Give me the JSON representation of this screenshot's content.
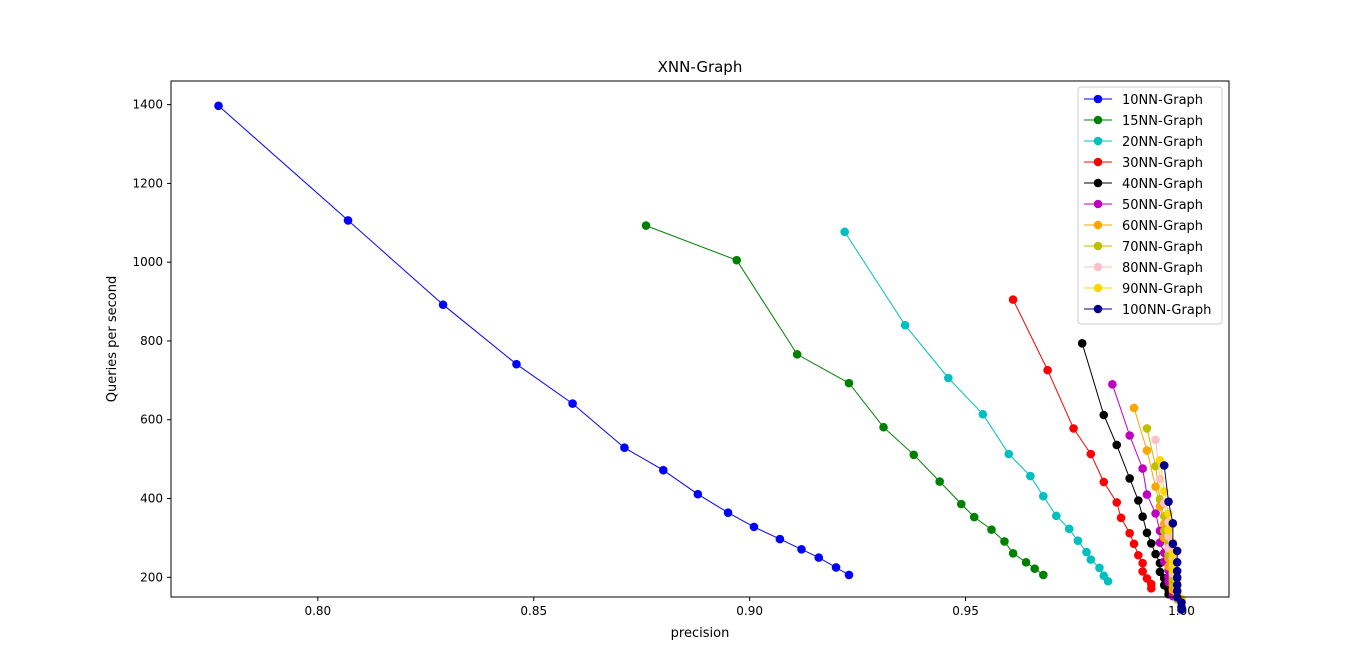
{
  "chart_data": {
    "type": "line",
    "title": "XNN-Graph",
    "xlabel": "precision",
    "ylabel": "Queries per second",
    "xlim": [
      0.766,
      1.011
    ],
    "ylim": [
      150,
      1460
    ],
    "xticks": [
      0.8,
      0.85,
      0.9,
      0.95,
      1.0
    ],
    "xtick_labels": [
      "0.80",
      "0.85",
      "0.90",
      "0.95",
      "1.00"
    ],
    "yticks": [
      200,
      400,
      600,
      800,
      1000,
      1200,
      1400
    ],
    "ytick_labels": [
      "200",
      "400",
      "600",
      "800",
      "1000",
      "1200",
      "1400"
    ],
    "grid": false,
    "legend_position": "top-right",
    "series": [
      {
        "name": "10NN-Graph",
        "color": "#0000ff",
        "x": [
          0.777,
          0.807,
          0.829,
          0.846,
          0.859,
          0.871,
          0.88,
          0.888,
          0.895,
          0.901,
          0.907,
          0.912,
          0.916,
          0.92,
          0.923
        ],
        "y": [
          1397,
          1106,
          892,
          741,
          641,
          529,
          472,
          411,
          364,
          328,
          297,
          271,
          250,
          225,
          206
        ]
      },
      {
        "name": "15NN-Graph",
        "color": "#008000",
        "x": [
          0.876,
          0.897,
          0.911,
          0.923,
          0.931,
          0.938,
          0.944,
          0.949,
          0.952,
          0.956,
          0.959,
          0.961,
          0.964,
          0.966,
          0.968
        ],
        "y": [
          1093,
          1005,
          766,
          693,
          581,
          511,
          443,
          386,
          353,
          321,
          291,
          261,
          238,
          222,
          206
        ]
      },
      {
        "name": "20NN-Graph",
        "color": "#00bfbf",
        "x": [
          0.922,
          0.936,
          0.946,
          0.954,
          0.96,
          0.965,
          0.968,
          0.971,
          0.974,
          0.976,
          0.978,
          0.979,
          0.981,
          0.982,
          0.983
        ],
        "y": [
          1077,
          840,
          706,
          614,
          513,
          457,
          406,
          356,
          323,
          293,
          264,
          245,
          224,
          204,
          190
        ]
      },
      {
        "name": "30NN-Graph",
        "color": "#ff0000",
        "x": [
          0.961,
          0.969,
          0.975,
          0.979,
          0.982,
          0.985,
          0.986,
          0.988,
          0.989,
          0.99,
          0.991,
          0.991,
          0.992,
          0.993,
          0.993
        ],
        "y": [
          905,
          726,
          578,
          513,
          442,
          390,
          351,
          312,
          285,
          256,
          236,
          215,
          197,
          183,
          172
        ]
      },
      {
        "name": "40NN-Graph",
        "color": "#000000",
        "x": [
          0.977,
          0.982,
          0.985,
          0.988,
          0.99,
          0.991,
          0.992,
          0.993,
          0.994,
          0.995,
          0.995,
          0.996,
          0.996,
          0.997,
          0.997
        ],
        "y": [
          794,
          612,
          536,
          451,
          395,
          354,
          313,
          286,
          259,
          236,
          214,
          198,
          180,
          168,
          157
        ]
      },
      {
        "name": "50NN-Graph",
        "color": "#bf00bf",
        "x": [
          0.984,
          0.988,
          0.991,
          0.992,
          0.994,
          0.995,
          0.995,
          0.996,
          0.996,
          0.997,
          0.997,
          0.997,
          0.998,
          0.998,
          0.998
        ],
        "y": [
          690,
          560,
          476,
          410,
          362,
          318,
          288,
          262,
          240,
          218,
          201,
          188,
          174,
          163,
          152
        ]
      },
      {
        "name": "60NN-Graph",
        "color": "#ffa500",
        "x": [
          0.989,
          0.992,
          0.994,
          0.995,
          0.996,
          0.996,
          0.997,
          0.997,
          0.997,
          0.998,
          0.998,
          0.998,
          0.998,
          0.999,
          0.999
        ],
        "y": [
          630,
          522,
          430,
          380,
          336,
          300,
          272,
          248,
          228,
          210,
          194,
          180,
          168,
          158,
          148
        ]
      },
      {
        "name": "70NN-Graph",
        "color": "#bfbf00",
        "x": [
          0.992,
          0.994,
          0.995,
          0.996,
          0.996,
          0.997,
          0.997,
          0.998,
          0.998,
          0.998,
          0.998,
          0.999,
          0.999,
          0.999,
          0.999
        ],
        "y": [
          578,
          482,
          398,
          355,
          318,
          286,
          258,
          236,
          218,
          202,
          188,
          174,
          162,
          152,
          144
        ]
      },
      {
        "name": "80NN-Graph",
        "color": "#ffc0cb",
        "x": [
          0.994,
          0.995,
          0.996,
          0.997,
          0.997,
          0.997,
          0.998,
          0.998,
          0.998,
          0.999,
          0.999,
          0.999,
          0.999,
          0.999,
          1.0
        ],
        "y": [
          549,
          450,
          388,
          340,
          304,
          274,
          248,
          228,
          210,
          195,
          181,
          168,
          157,
          148,
          140
        ]
      },
      {
        "name": "90NN-Graph",
        "color": "#ffd700",
        "x": [
          0.995,
          0.996,
          0.997,
          0.997,
          0.998,
          0.998,
          0.998,
          0.998,
          0.999,
          0.999,
          0.999,
          0.999,
          0.999,
          1.0,
          1.0
        ],
        "y": [
          497,
          418,
          362,
          320,
          288,
          260,
          238,
          219,
          203,
          189,
          176,
          164,
          154,
          145,
          137
        ]
      },
      {
        "name": "100NN-Graph",
        "color": "#00008b",
        "x": [
          0.996,
          0.997,
          0.998,
          0.998,
          0.999,
          0.999,
          0.999,
          0.999,
          0.999,
          0.999,
          0.999,
          1.0,
          1.0,
          1.0
        ],
        "y": [
          484,
          392,
          337,
          285,
          267,
          238,
          216,
          199,
          181,
          165,
          149,
          136,
          125,
          118
        ]
      }
    ]
  }
}
